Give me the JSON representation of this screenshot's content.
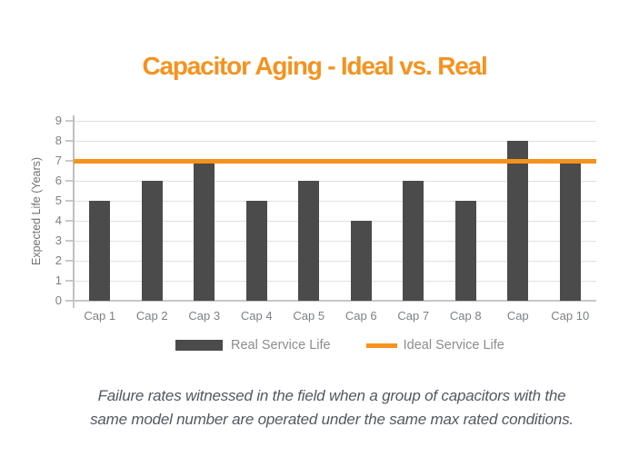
{
  "title": "Capacitor Aging - Ideal vs. Real",
  "colors": {
    "accent": "#F6921E",
    "bar": "#4B4B4B",
    "gridline": "#e0e0e0",
    "axis_text": "#7d8084"
  },
  "chart_data": {
    "type": "bar",
    "title": "Capacitor Aging - Ideal vs. Real",
    "categories": [
      "Cap 1",
      "Cap 2",
      "Cap 3",
      "Cap 4",
      "Cap 5",
      "Cap 6",
      "Cap 7",
      "Cap 8",
      "Cap",
      "Cap 10"
    ],
    "series": [
      {
        "name": "Real Service Life",
        "type": "bar",
        "color": "#4B4B4B",
        "values": [
          5,
          6,
          7,
          5,
          6,
          4,
          6,
          5,
          8,
          6.95
        ]
      },
      {
        "name": "Ideal Service Life",
        "type": "line",
        "color": "#F6921E",
        "value": 7
      }
    ],
    "xlabel": "",
    "ylabel": "Expected Life (Years)",
    "ylim": [
      0,
      9
    ],
    "yticks": [
      0,
      1,
      2,
      3,
      4,
      5,
      6,
      7,
      8,
      9
    ],
    "grid": true,
    "legend_position": "bottom"
  },
  "legend": {
    "items": [
      {
        "label": "Real Service Life",
        "swatch": "bar",
        "color": "#4B4B4B"
      },
      {
        "label": "Ideal Service Life",
        "swatch": "line",
        "color": "#F6921E"
      }
    ]
  },
  "caption": {
    "line1": "Failure rates witnessed in the field when a group of capacitors with the",
    "line2": "same model number are operated under the same max rated conditions."
  }
}
